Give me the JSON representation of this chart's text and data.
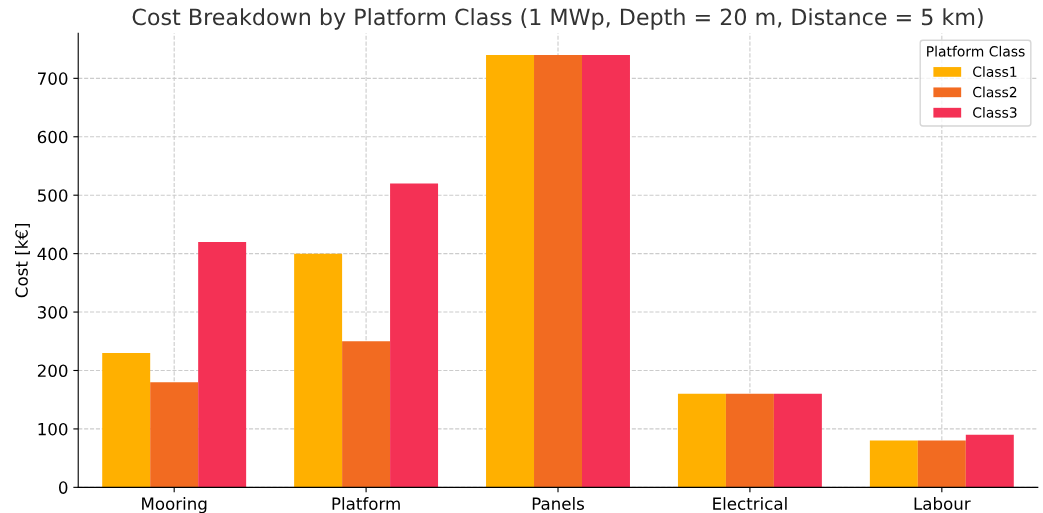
{
  "chart_data": {
    "type": "bar",
    "title": "Cost Breakdown by Platform Class (1 MWp, Depth = 20 m, Distance = 5 km)",
    "ylabel": "Cost [k€]",
    "legend_title": "Platform Class",
    "categories": [
      "Mooring",
      "Platform",
      "Panels",
      "Electrical",
      "Labour"
    ],
    "series": [
      {
        "name": "Class1",
        "color": "#ffb000",
        "values": [
          230,
          400,
          740,
          160,
          80
        ]
      },
      {
        "name": "Class2",
        "color": "#f26b21",
        "values": [
          180,
          250,
          740,
          160,
          80
        ]
      },
      {
        "name": "Class3",
        "color": "#f43155",
        "values": [
          420,
          520,
          740,
          160,
          90
        ]
      }
    ],
    "ylim": [
      0,
      777
    ],
    "yticks": [
      0,
      100,
      200,
      300,
      400,
      500,
      600,
      700
    ],
    "grid": true,
    "legend": "top right"
  }
}
